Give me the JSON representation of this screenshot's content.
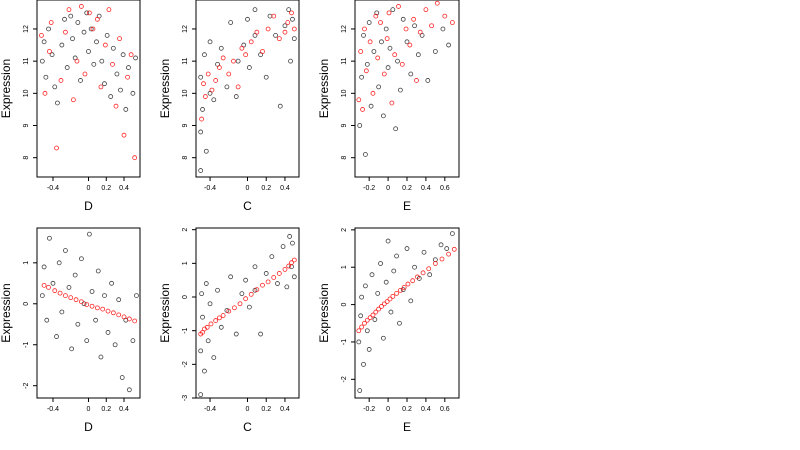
{
  "figure": {
    "background": "#ffffff"
  },
  "chart_data": [
    {
      "type": "scatter",
      "panel": "top-left",
      "xlabel": "D",
      "ylabel": "Expression",
      "xlim": [
        -0.58,
        0.58
      ],
      "ylim": [
        7.4,
        12.9
      ],
      "xticks": [
        -0.4,
        0.0,
        0.2,
        0.4
      ],
      "yticks": [
        8,
        9,
        10,
        11,
        12
      ],
      "ytick_labels": [
        "8",
        "9",
        "10",
        "11",
        "12"
      ],
      "grid": false,
      "legend": "none",
      "series": [
        {
          "color": "#000000",
          "x": [
            -0.52,
            -0.5,
            -0.48,
            -0.45,
            -0.41,
            -0.38,
            -0.35,
            -0.3,
            -0.27,
            -0.24,
            -0.2,
            -0.18,
            -0.15,
            -0.12,
            -0.09,
            -0.05,
            -0.02,
            0.0,
            0.03,
            0.06,
            0.09,
            0.12,
            0.15,
            0.18,
            0.21,
            0.25,
            0.28,
            0.32,
            0.36,
            0.39,
            0.42,
            0.45,
            0.5,
            0.53
          ],
          "y": [
            11.0,
            11.6,
            10.5,
            12.0,
            11.2,
            10.2,
            9.7,
            11.5,
            12.3,
            10.8,
            12.4,
            11.7,
            11.1,
            12.2,
            10.4,
            11.9,
            12.5,
            11.3,
            12.0,
            10.9,
            11.6,
            12.4,
            11.0,
            10.3,
            11.8,
            9.9,
            11.4,
            10.6,
            10.1,
            11.2,
            9.5,
            10.8,
            10.0,
            11.1
          ]
        },
        {
          "color": "#ff0000",
          "x": [
            -0.53,
            -0.49,
            -0.44,
            -0.42,
            -0.36,
            -0.31,
            -0.26,
            -0.22,
            -0.17,
            -0.13,
            -0.08,
            -0.04,
            0.01,
            0.05,
            0.1,
            0.14,
            0.19,
            0.23,
            0.27,
            0.31,
            0.35,
            0.4,
            0.44,
            0.48,
            0.52
          ],
          "y": [
            11.8,
            10.0,
            11.3,
            12.2,
            8.3,
            10.4,
            11.9,
            12.6,
            9.8,
            11.0,
            12.7,
            10.6,
            12.5,
            12.0,
            12.3,
            10.2,
            11.5,
            12.6,
            10.9,
            9.6,
            11.7,
            8.7,
            10.5,
            11.2,
            8.0
          ]
        }
      ]
    },
    {
      "type": "scatter",
      "panel": "top-middle",
      "xlabel": "C",
      "ylabel": "Expression",
      "xlim": [
        -0.55,
        0.55
      ],
      "ylim": [
        7.4,
        12.9
      ],
      "xticks": [
        -0.4,
        0.0,
        0.2,
        0.4
      ],
      "yticks": [
        8,
        9,
        10,
        11,
        12
      ],
      "ytick_labels": [
        "8",
        "9",
        "10",
        "11",
        "12"
      ],
      "grid": false,
      "legend": "none",
      "series": [
        {
          "color": "#000000",
          "x": [
            -0.5,
            -0.5,
            -0.5,
            -0.48,
            -0.46,
            -0.44,
            -0.4,
            -0.4,
            -0.36,
            -0.32,
            -0.28,
            -0.22,
            -0.18,
            -0.12,
            -0.1,
            -0.04,
            0.0,
            0.02,
            0.08,
            0.08,
            0.14,
            0.2,
            0.24,
            0.3,
            0.35,
            0.4,
            0.44,
            0.46,
            0.48,
            0.5
          ],
          "y": [
            7.6,
            8.8,
            10.5,
            9.5,
            11.2,
            8.2,
            10.0,
            11.6,
            9.8,
            10.9,
            11.4,
            10.2,
            12.2,
            9.9,
            11.0,
            11.5,
            12.3,
            10.8,
            11.8,
            12.6,
            11.2,
            10.5,
            12.4,
            11.8,
            9.6,
            12.1,
            12.6,
            11.0,
            12.3,
            11.7
          ]
        },
        {
          "color": "#ff0000",
          "x": [
            -0.49,
            -0.47,
            -0.45,
            -0.42,
            -0.38,
            -0.34,
            -0.3,
            -0.26,
            -0.2,
            -0.15,
            -0.1,
            -0.06,
            -0.02,
            0.04,
            0.1,
            0.16,
            0.22,
            0.28,
            0.34,
            0.4,
            0.43,
            0.47,
            0.5
          ],
          "y": [
            9.2,
            10.3,
            9.9,
            10.6,
            10.1,
            10.4,
            10.8,
            11.1,
            10.6,
            11.0,
            10.2,
            11.4,
            11.2,
            11.6,
            11.9,
            11.3,
            12.0,
            12.4,
            11.7,
            11.9,
            12.2,
            12.5,
            12.0
          ]
        }
      ]
    },
    {
      "type": "scatter",
      "panel": "top-right",
      "xlabel": "E",
      "ylabel": "Expression",
      "xlim": [
        -0.35,
        0.75
      ],
      "ylim": [
        7.4,
        12.9
      ],
      "xticks": [
        -0.2,
        0.0,
        0.2,
        0.4,
        0.6
      ],
      "yticks": [
        8,
        9,
        10,
        11,
        12
      ],
      "ytick_labels": [
        "8",
        "9",
        "10",
        "11",
        "12"
      ],
      "grid": false,
      "legend": "none",
      "series": [
        {
          "color": "#000000",
          "x": [
            -0.3,
            -0.28,
            -0.26,
            -0.24,
            -0.22,
            -0.2,
            -0.18,
            -0.15,
            -0.12,
            -0.1,
            -0.07,
            -0.05,
            -0.02,
            0.0,
            0.02,
            0.05,
            0.08,
            0.1,
            0.13,
            0.16,
            0.2,
            0.24,
            0.28,
            0.32,
            0.36,
            0.42,
            0.5,
            0.58,
            0.64
          ],
          "y": [
            9.0,
            10.5,
            11.8,
            8.1,
            10.9,
            12.2,
            9.6,
            11.3,
            12.5,
            10.2,
            11.6,
            9.3,
            12.0,
            10.8,
            11.4,
            12.6,
            8.9,
            11.0,
            10.1,
            12.3,
            11.6,
            10.6,
            12.1,
            11.2,
            11.8,
            10.4,
            11.3,
            12.0,
            11.5
          ]
        },
        {
          "color": "#ff0000",
          "x": [
            -0.31,
            -0.29,
            -0.27,
            -0.25,
            -0.23,
            -0.19,
            -0.16,
            -0.13,
            -0.11,
            -0.08,
            -0.04,
            -0.01,
            0.01,
            0.04,
            0.07,
            0.11,
            0.15,
            0.19,
            0.23,
            0.27,
            0.3,
            0.34,
            0.4,
            0.46,
            0.52,
            0.6,
            0.68
          ],
          "y": [
            9.8,
            11.3,
            9.5,
            12.0,
            10.7,
            11.6,
            10.0,
            12.4,
            11.1,
            12.2,
            10.6,
            11.7,
            12.5,
            9.7,
            11.2,
            12.7,
            10.9,
            12.0,
            11.5,
            12.3,
            10.4,
            11.9,
            12.6,
            12.1,
            12.8,
            12.4,
            12.2
          ]
        }
      ]
    },
    {
      "type": "scatter",
      "panel": "bottom-left",
      "xlabel": "D",
      "ylabel": "Expression",
      "xlim": [
        -0.58,
        0.58
      ],
      "ylim": [
        -2.3,
        1.85
      ],
      "xticks": [
        -0.4,
        0.0,
        0.2,
        0.4
      ],
      "yticks": [
        -2,
        -1,
        0,
        1
      ],
      "ytick_labels": [
        "-2",
        "-1",
        "0",
        "1"
      ],
      "grid": false,
      "legend": "none",
      "series": [
        {
          "color": "#000000",
          "x": [
            -0.52,
            -0.5,
            -0.47,
            -0.44,
            -0.4,
            -0.36,
            -0.33,
            -0.3,
            -0.26,
            -0.22,
            -0.19,
            -0.15,
            -0.12,
            -0.08,
            -0.05,
            -0.02,
            0.01,
            0.04,
            0.08,
            0.11,
            0.14,
            0.18,
            0.22,
            0.26,
            0.3,
            0.34,
            0.38,
            0.42,
            0.46,
            0.5,
            0.54
          ],
          "y": [
            0.2,
            0.9,
            -0.4,
            1.6,
            0.5,
            -0.8,
            1.0,
            -0.2,
            1.3,
            0.4,
            -1.1,
            0.7,
            -0.5,
            1.1,
            0.0,
            -0.9,
            1.7,
            0.3,
            -0.4,
            0.8,
            -1.3,
            0.2,
            -0.7,
            0.5,
            -1.0,
            0.1,
            -1.8,
            -0.4,
            -2.1,
            -0.9,
            0.2
          ]
        },
        {
          "color": "#ff0000",
          "x": [
            -0.5,
            -0.45,
            -0.38,
            -0.32,
            -0.26,
            -0.2,
            -0.14,
            -0.08,
            -0.02,
            0.04,
            0.1,
            0.16,
            0.22,
            0.28,
            0.34,
            0.4,
            0.46,
            0.52
          ],
          "y": [
            0.45,
            0.4,
            0.32,
            0.26,
            0.2,
            0.15,
            0.1,
            0.05,
            -0.02,
            -0.06,
            -0.1,
            -0.13,
            -0.18,
            -0.22,
            -0.27,
            -0.32,
            -0.37,
            -0.42
          ]
        }
      ]
    },
    {
      "type": "scatter",
      "panel": "bottom-middle",
      "xlabel": "C",
      "ylabel": "Expression",
      "xlim": [
        -0.55,
        0.55
      ],
      "ylim": [
        -3.0,
        2.05
      ],
      "xticks": [
        -0.4,
        0.0,
        0.2,
        0.4
      ],
      "yticks": [
        -3,
        -2,
        -1,
        0,
        1,
        2
      ],
      "ytick_labels": [
        "-3",
        "-2",
        "-1",
        "0",
        "1",
        "2"
      ],
      "grid": false,
      "legend": "none",
      "series": [
        {
          "color": "#000000",
          "x": [
            -0.5,
            -0.5,
            -0.49,
            -0.48,
            -0.46,
            -0.44,
            -0.42,
            -0.4,
            -0.36,
            -0.32,
            -0.28,
            -0.22,
            -0.18,
            -0.12,
            -0.06,
            -0.02,
            0.02,
            0.08,
            0.08,
            0.14,
            0.2,
            0.26,
            0.32,
            0.38,
            0.42,
            0.45,
            0.47,
            0.48,
            0.5
          ],
          "y": [
            -2.9,
            -1.6,
            0.1,
            -0.6,
            -2.2,
            0.4,
            -1.3,
            -0.2,
            -1.8,
            0.2,
            -0.9,
            -0.4,
            0.6,
            -1.1,
            0.1,
            0.5,
            -0.3,
            0.9,
            0.2,
            -1.1,
            0.7,
            1.2,
            0.4,
            1.5,
            0.3,
            1.8,
            0.9,
            1.6,
            0.6
          ]
        },
        {
          "color": "#ff0000",
          "x": [
            -0.5,
            -0.48,
            -0.46,
            -0.43,
            -0.39,
            -0.34,
            -0.3,
            -0.26,
            -0.2,
            -0.14,
            -0.08,
            -0.02,
            0.04,
            0.1,
            0.16,
            0.22,
            0.28,
            0.34,
            0.4,
            0.44,
            0.47,
            0.5
          ],
          "y": [
            -1.1,
            -1.05,
            -0.95,
            -0.9,
            -0.8,
            -0.7,
            -0.62,
            -0.55,
            -0.42,
            -0.32,
            -0.2,
            -0.05,
            0.08,
            0.22,
            0.35,
            0.45,
            0.58,
            0.7,
            0.82,
            0.92,
            1.02,
            1.1
          ]
        }
      ]
    },
    {
      "type": "scatter",
      "panel": "bottom-right",
      "xlabel": "E",
      "ylabel": "Expression",
      "xlim": [
        -0.35,
        0.75
      ],
      "ylim": [
        -2.5,
        2.05
      ],
      "xticks": [
        -0.2,
        0.0,
        0.2,
        0.4,
        0.6
      ],
      "yticks": [
        -2,
        -1,
        0,
        1,
        2
      ],
      "ytick_labels": [
        "-2",
        "-1",
        "0",
        "1",
        "2"
      ],
      "grid": false,
      "legend": "none",
      "series": [
        {
          "color": "#000000",
          "x": [
            -0.31,
            -0.3,
            -0.29,
            -0.28,
            -0.26,
            -0.24,
            -0.22,
            -0.2,
            -0.17,
            -0.14,
            -0.11,
            -0.08,
            -0.05,
            -0.02,
            0.0,
            0.03,
            0.06,
            0.09,
            0.12,
            0.16,
            0.2,
            0.24,
            0.28,
            0.33,
            0.38,
            0.44,
            0.5,
            0.56,
            0.62,
            0.68
          ],
          "y": [
            -1.0,
            -2.3,
            -0.3,
            0.2,
            -1.6,
            0.5,
            -0.7,
            -1.2,
            0.8,
            -0.4,
            0.3,
            1.1,
            -0.9,
            0.6,
            1.7,
            -0.2,
            0.9,
            1.3,
            -0.5,
            0.4,
            1.5,
            0.1,
            1.0,
            0.7,
            1.4,
            0.8,
            1.2,
            1.6,
            1.5,
            1.9
          ]
        },
        {
          "color": "#ff0000",
          "x": [
            -0.31,
            -0.28,
            -0.25,
            -0.22,
            -0.19,
            -0.16,
            -0.13,
            -0.1,
            -0.07,
            -0.04,
            -0.01,
            0.02,
            0.05,
            0.09,
            0.13,
            0.17,
            0.21,
            0.26,
            0.31,
            0.37,
            0.43,
            0.5,
            0.57,
            0.64,
            0.7
          ],
          "y": [
            -0.7,
            -0.6,
            -0.5,
            -0.42,
            -0.35,
            -0.28,
            -0.2,
            -0.12,
            -0.05,
            0.02,
            0.08,
            0.15,
            0.22,
            0.3,
            0.38,
            0.46,
            0.55,
            0.64,
            0.74,
            0.85,
            0.96,
            1.1,
            1.22,
            1.35,
            1.48
          ]
        }
      ]
    }
  ]
}
